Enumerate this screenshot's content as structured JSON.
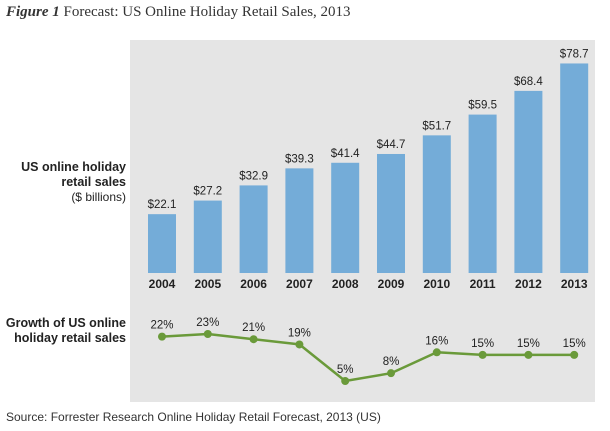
{
  "figure": {
    "label": "Figure 1",
    "title": "Forecast: US Online Holiday Retail Sales, 2013"
  },
  "source": "Source: Forrester Research Online Holiday Retail Forecast, 2013 (US)",
  "colors": {
    "bar": "#74acd8",
    "line": "#6a9a3a",
    "panel": "#e5e5e5"
  },
  "chart_data": [
    {
      "type": "bar",
      "title": "US online holiday retail sales",
      "ylabel": "($ billions)",
      "categories": [
        "2004",
        "2005",
        "2006",
        "2007",
        "2008",
        "2009",
        "2010",
        "2011",
        "2012",
        "2013"
      ],
      "values": [
        22.1,
        27.2,
        32.9,
        39.3,
        41.4,
        44.7,
        51.7,
        59.5,
        68.4,
        78.7
      ],
      "value_labels": [
        "$22.1",
        "$27.2",
        "$32.9",
        "$39.3",
        "$41.4",
        "$44.7",
        "$51.7",
        "$59.5",
        "$68.4",
        "$78.7"
      ],
      "ylim": [
        0,
        80
      ],
      "grid": false
    },
    {
      "type": "line",
      "title": "Growth of US online holiday retail sales",
      "categories": [
        "2004",
        "2005",
        "2006",
        "2007",
        "2008",
        "2009",
        "2010",
        "2011",
        "2012",
        "2013"
      ],
      "values": [
        22,
        23,
        21,
        19,
        5,
        8,
        16,
        15,
        15,
        15
      ],
      "value_labels": [
        "22%",
        "23%",
        "21%",
        "19%",
        "5%",
        "8%",
        "16%",
        "15%",
        "15%",
        "15%"
      ],
      "ylim": [
        5,
        23
      ],
      "grid": false
    }
  ]
}
